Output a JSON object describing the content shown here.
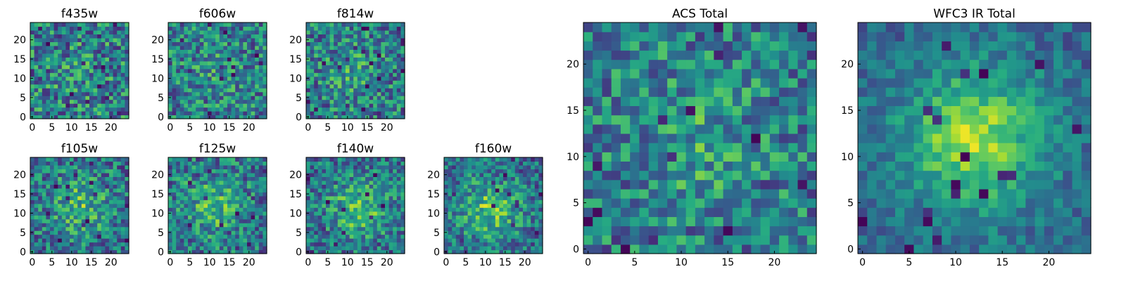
{
  "chart_data": [
    {
      "type": "heatmap",
      "title": "f435w",
      "colormap": "viridis",
      "xlim": [
        -0.5,
        24.5
      ],
      "ylim": [
        -0.5,
        24.5
      ],
      "xticks": [
        0,
        5,
        10,
        15,
        20
      ],
      "yticks": [
        0,
        5,
        10,
        15,
        20
      ],
      "peak": [
        12,
        11
      ],
      "profile": 0.05,
      "noise": 0.33
    },
    {
      "type": "heatmap",
      "title": "f606w",
      "colormap": "viridis",
      "xlim": [
        -0.5,
        24.5
      ],
      "ylim": [
        -0.5,
        24.5
      ],
      "xticks": [
        0,
        5,
        10,
        15,
        20
      ],
      "yticks": [
        0,
        5,
        10,
        15,
        20
      ],
      "peak": [
        12,
        12
      ],
      "profile": 0.1,
      "noise": 0.3
    },
    {
      "type": "heatmap",
      "title": "f814w",
      "colormap": "viridis",
      "xlim": [
        -0.5,
        24.5
      ],
      "ylim": [
        -0.5,
        24.5
      ],
      "xticks": [
        0,
        5,
        10,
        15,
        20
      ],
      "yticks": [
        0,
        5,
        10,
        15,
        20
      ],
      "peak": [
        12,
        12
      ],
      "profile": 0.2,
      "noise": 0.3
    },
    {
      "type": "heatmap",
      "title": "f105w",
      "colormap": "viridis",
      "xlim": [
        -0.5,
        24.5
      ],
      "ylim": [
        -0.5,
        24.5
      ],
      "xticks": [
        0,
        5,
        10,
        15,
        20
      ],
      "yticks": [
        0,
        5,
        10,
        15,
        20
      ],
      "peak": [
        12,
        12
      ],
      "profile": 0.4,
      "noise": 0.28
    },
    {
      "type": "heatmap",
      "title": "f125w",
      "colormap": "viridis",
      "xlim": [
        -0.5,
        24.5
      ],
      "ylim": [
        -0.5,
        24.5
      ],
      "xticks": [
        0,
        5,
        10,
        15,
        20
      ],
      "yticks": [
        0,
        5,
        10,
        15,
        20
      ],
      "peak": [
        11,
        12
      ],
      "profile": 0.38,
      "noise": 0.28
    },
    {
      "type": "heatmap",
      "title": "f140w",
      "colormap": "viridis",
      "xlim": [
        -0.5,
        24.5
      ],
      "ylim": [
        -0.5,
        24.5
      ],
      "xticks": [
        0,
        5,
        10,
        15,
        20
      ],
      "yticks": [
        0,
        5,
        10,
        15,
        20
      ],
      "peak": [
        13,
        11
      ],
      "profile": 0.45,
      "noise": 0.27
    },
    {
      "type": "heatmap",
      "title": "f160w",
      "colormap": "viridis",
      "xlim": [
        -0.5,
        24.5
      ],
      "ylim": [
        -0.5,
        24.5
      ],
      "xticks": [
        0,
        5,
        10,
        15,
        20
      ],
      "yticks": [
        0,
        5,
        10,
        15,
        20
      ],
      "peak": [
        11,
        11
      ],
      "profile": 0.5,
      "noise": 0.26
    },
    {
      "type": "heatmap",
      "title": "ACS Total",
      "colormap": "viridis",
      "xlim": [
        -0.5,
        24.5
      ],
      "ylim": [
        -0.5,
        24.5
      ],
      "xticks": [
        0,
        5,
        10,
        15,
        20
      ],
      "yticks": [
        0,
        5,
        10,
        15,
        20
      ],
      "peak": [
        12,
        12
      ],
      "profile": 0.2,
      "noise": 0.28
    },
    {
      "type": "heatmap",
      "title": "WFC3 IR Total",
      "colormap": "viridis",
      "xlim": [
        -0.5,
        24.5
      ],
      "ylim": [
        -0.5,
        24.5
      ],
      "xticks": [
        0,
        5,
        10,
        15,
        20
      ],
      "yticks": [
        0,
        5,
        10,
        15,
        20
      ],
      "peak": [
        12,
        12
      ],
      "profile": 0.75,
      "noise": 0.15
    }
  ]
}
